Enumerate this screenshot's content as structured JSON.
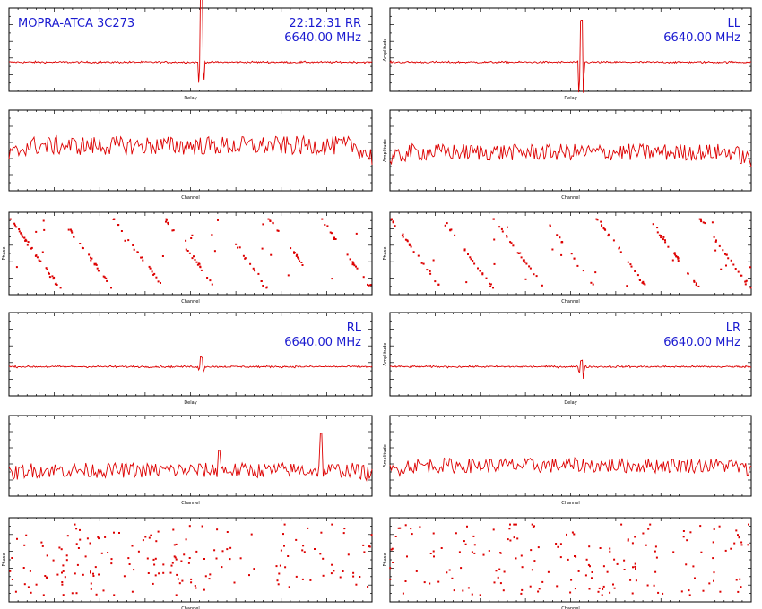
{
  "colors": {
    "trace": "#dd0000",
    "label": "#1a1ad0",
    "axis": "#000000"
  },
  "chart_data": [
    {
      "type": "line",
      "group": 1,
      "col": 0,
      "row": 0,
      "kind": "delay",
      "labels": [
        "MOPRA-ATCA 3C273",
        "22:12:31  RR",
        "6640.00  MHz"
      ],
      "xlabel": "Delay",
      "ylabel": "",
      "feature": {
        "x": 0.53,
        "height": 0.85,
        "neg": 0.25
      }
    },
    {
      "type": "line",
      "group": 1,
      "col": 1,
      "row": 0,
      "kind": "delay",
      "labels": [
        "",
        "LL",
        "6640.00  MHz"
      ],
      "xlabel": "Delay",
      "ylabel": "Amplitude",
      "feature": {
        "x": 0.53,
        "height": 0.5,
        "neg": 0.45
      }
    },
    {
      "type": "line",
      "group": 1,
      "col": 0,
      "row": 1,
      "kind": "channel",
      "xlabel": "Channel",
      "ylabel": "",
      "level": 0.4,
      "noise": 0.28
    },
    {
      "type": "line",
      "group": 1,
      "col": 1,
      "row": 1,
      "kind": "channel",
      "xlabel": "Channel",
      "ylabel": "Amplitude",
      "level": 0.32,
      "noise": 0.25
    },
    {
      "type": "scatter",
      "group": 1,
      "col": 0,
      "row": 2,
      "kind": "phase",
      "xlabel": "Channel",
      "ylabel": "Phase",
      "wraps": 7
    },
    {
      "type": "scatter",
      "group": 1,
      "col": 1,
      "row": 2,
      "kind": "phase",
      "xlabel": "Channel",
      "ylabel": "Phase",
      "wraps": 7
    },
    {
      "type": "line",
      "group": 2,
      "col": 0,
      "row": 0,
      "kind": "delay",
      "labels": [
        "",
        "RL",
        "6640.00  MHz"
      ],
      "xlabel": "Delay",
      "ylabel": "",
      "feature": {
        "x": 0.53,
        "height": 0.12,
        "neg": 0.08
      }
    },
    {
      "type": "line",
      "group": 2,
      "col": 1,
      "row": 0,
      "kind": "delay",
      "labels": [
        "",
        "LR",
        "6640.00  MHz"
      ],
      "xlabel": "Delay",
      "ylabel": "Amplitude",
      "feature": {
        "x": 0.53,
        "height": 0.08,
        "neg": 0.2
      }
    },
    {
      "type": "line",
      "group": 2,
      "col": 0,
      "row": 1,
      "kind": "channel",
      "xlabel": "Channel",
      "ylabel": "",
      "level": 0.15,
      "noise": 0.22,
      "spikes": [
        {
          "x": 0.58,
          "h": 0.55
        },
        {
          "x": 0.86,
          "h": 0.8
        }
      ]
    },
    {
      "type": "line",
      "group": 2,
      "col": 1,
      "row": 1,
      "kind": "channel",
      "xlabel": "Channel",
      "ylabel": "Amplitude",
      "level": 0.22,
      "noise": 0.22,
      "spikes": [
        {
          "x": 0.92,
          "h": 0.35
        }
      ]
    },
    {
      "type": "scatter",
      "group": 2,
      "col": 0,
      "row": 2,
      "kind": "phase",
      "xlabel": "Channel",
      "ylabel": "Phase",
      "wraps": 0
    },
    {
      "type": "scatter",
      "group": 2,
      "col": 1,
      "row": 2,
      "kind": "phase",
      "xlabel": "Channel",
      "ylabel": "Phase",
      "wraps": 0
    }
  ]
}
